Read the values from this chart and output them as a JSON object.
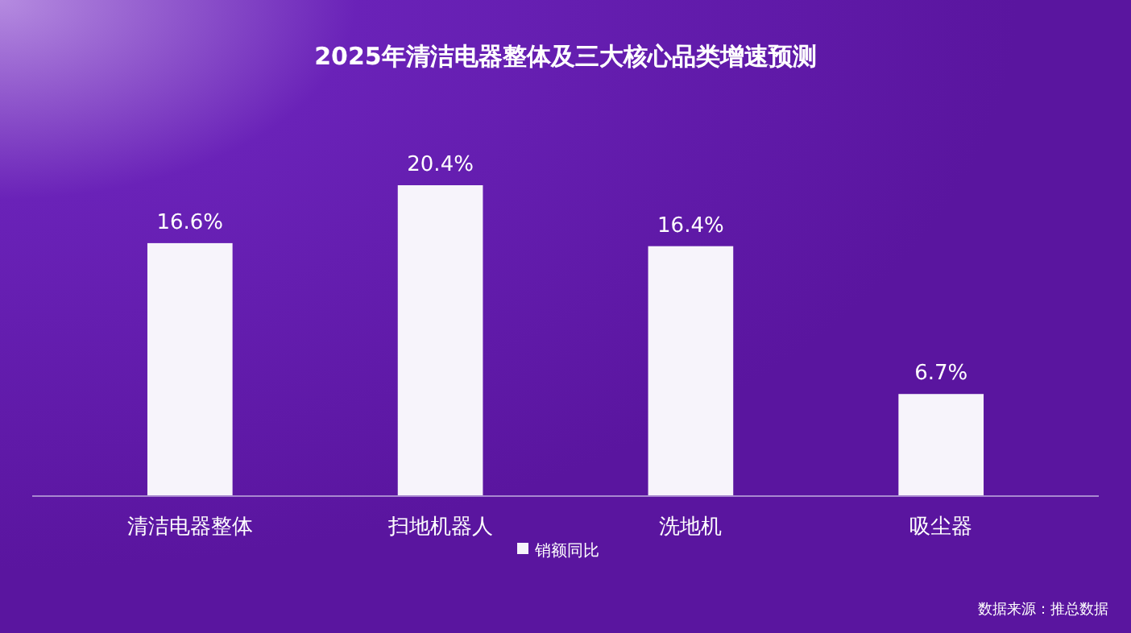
{
  "chart_data": {
    "type": "bar",
    "title": "2025年清洁电器整体及三大核心品类增速预测",
    "categories": [
      "清洁电器整体",
      "扫地机器人",
      "洗地机",
      "吸尘器"
    ],
    "series": [
      {
        "name": "销额同比",
        "color": "#f7f4fb",
        "values": [
          16.6,
          20.4,
          16.4,
          6.7
        ],
        "value_labels": [
          "16.6%",
          "20.4%",
          "16.4%",
          "6.7%"
        ]
      }
    ],
    "legend": "bottom",
    "annotations": [
      "数据来源：推总数据"
    ]
  }
}
